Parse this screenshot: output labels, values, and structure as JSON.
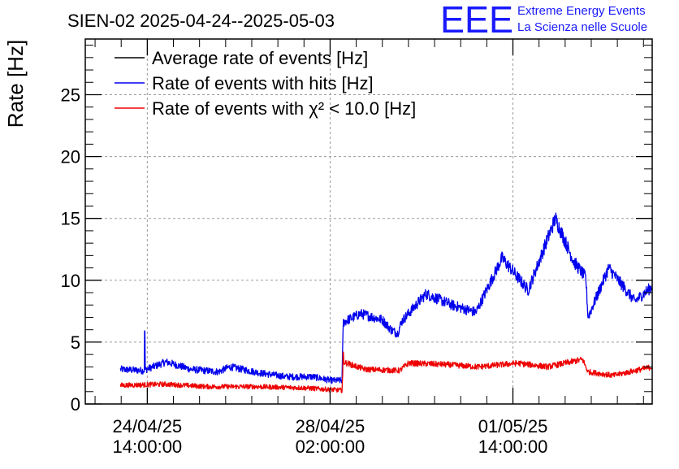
{
  "chart_data": {
    "type": "line",
    "title": "SIEN-02 2025-04-24--2025-05-03",
    "ylabel": "Rate [Hz]",
    "xlabel": "",
    "ylim": [
      0,
      29.5
    ],
    "xlim": [
      "2025-04-23T09:30:00",
      "2025-05-04T06:00:00"
    ],
    "grid": true,
    "legend_position": "top-left",
    "logo": {
      "mark": "EEE",
      "line1": "Extreme Energy Events",
      "line2": "La Scienza nelle Scuole",
      "color": "#1a1aff"
    },
    "y_ticks": [
      0,
      5,
      10,
      15,
      20,
      25
    ],
    "x_ticks": [
      {
        "x": "2025-04-24T14:00:00",
        "line1": "24/04/25",
        "line2": "14:00:00"
      },
      {
        "x": "2025-04-28T02:00:00",
        "line1": "28/04/25",
        "line2": "02:00:00"
      },
      {
        "x": "2025-05-01T14:00:00",
        "line1": "01/05/25",
        "line2": "14:00:00"
      }
    ],
    "series": [
      {
        "name": "Average rate of events [Hz]",
        "color": "#000000",
        "points": []
      },
      {
        "name": "Rate of events with hits [Hz]",
        "color": "#0000ee",
        "noise": 0.35,
        "spikes": [
          {
            "x": "2025-04-24T12:50:00",
            "y": 5.9
          }
        ],
        "points": [
          {
            "x": "2025-04-24T01:40:00",
            "y": 2.8
          },
          {
            "x": "2025-04-24T12:00:00",
            "y": 2.7
          },
          {
            "x": "2025-04-24T22:40:00",
            "y": 3.4
          },
          {
            "x": "2025-04-25T10:00:00",
            "y": 2.8
          },
          {
            "x": "2025-04-25T22:40:00",
            "y": 2.6
          },
          {
            "x": "2025-04-26T04:00:00",
            "y": 3.0
          },
          {
            "x": "2025-04-26T18:00:00",
            "y": 2.5
          },
          {
            "x": "2025-04-27T06:00:00",
            "y": 2.2
          },
          {
            "x": "2025-04-27T18:00:00",
            "y": 2.2
          },
          {
            "x": "2025-04-28T02:30:00",
            "y": 1.9
          },
          {
            "x": "2025-04-28T07:30:00",
            "y": 1.9
          },
          {
            "x": "2025-04-28T08:00:00",
            "y": 6.6
          },
          {
            "x": "2025-04-28T16:00:00",
            "y": 7.3
          },
          {
            "x": "2025-04-29T02:00:00",
            "y": 6.8
          },
          {
            "x": "2025-04-29T06:00:00",
            "y": 6.0
          },
          {
            "x": "2025-04-29T09:00:00",
            "y": 5.7
          },
          {
            "x": "2025-04-29T11:00:00",
            "y": 6.7
          },
          {
            "x": "2025-04-29T22:00:00",
            "y": 8.9
          },
          {
            "x": "2025-04-30T10:00:00",
            "y": 8.0
          },
          {
            "x": "2025-04-30T21:00:00",
            "y": 7.4
          },
          {
            "x": "2025-05-01T09:00:00",
            "y": 11.8
          },
          {
            "x": "2025-05-01T21:00:00",
            "y": 9.2
          },
          {
            "x": "2025-05-02T09:30:00",
            "y": 15.0
          },
          {
            "x": "2025-05-02T18:00:00",
            "y": 11.5
          },
          {
            "x": "2025-05-02T23:30:00",
            "y": 10.2
          },
          {
            "x": "2025-05-03T00:30:00",
            "y": 7.0
          },
          {
            "x": "2025-05-03T10:00:00",
            "y": 11.0
          },
          {
            "x": "2025-05-03T22:00:00",
            "y": 8.3
          },
          {
            "x": "2025-05-04T06:00:00",
            "y": 9.5
          }
        ]
      },
      {
        "name": "Rate of events with χ² < 10.0 [Hz]",
        "color": "#ee0000",
        "noise": 0.28,
        "spikes": [
          {
            "x": "2025-04-28T08:00:00",
            "y": 4.2
          }
        ],
        "points": [
          {
            "x": "2025-04-24T01:40:00",
            "y": 1.5
          },
          {
            "x": "2025-04-24T22:00:00",
            "y": 1.6
          },
          {
            "x": "2025-04-25T18:00:00",
            "y": 1.4
          },
          {
            "x": "2025-04-26T16:00:00",
            "y": 1.4
          },
          {
            "x": "2025-04-27T14:00:00",
            "y": 1.3
          },
          {
            "x": "2025-04-28T07:30:00",
            "y": 1.1
          },
          {
            "x": "2025-04-28T08:00:00",
            "y": 3.4
          },
          {
            "x": "2025-04-28T18:00:00",
            "y": 2.8
          },
          {
            "x": "2025-04-29T10:00:00",
            "y": 2.7
          },
          {
            "x": "2025-04-29T14:00:00",
            "y": 3.3
          },
          {
            "x": "2025-04-30T06:00:00",
            "y": 3.2
          },
          {
            "x": "2025-04-30T22:00:00",
            "y": 3.0
          },
          {
            "x": "2025-05-01T16:00:00",
            "y": 3.3
          },
          {
            "x": "2025-05-02T06:00:00",
            "y": 3.0
          },
          {
            "x": "2025-05-02T22:00:00",
            "y": 3.6
          },
          {
            "x": "2025-05-03T00:30:00",
            "y": 2.6
          },
          {
            "x": "2025-05-03T12:00:00",
            "y": 2.3
          },
          {
            "x": "2025-05-04T06:00:00",
            "y": 3.0
          }
        ]
      }
    ]
  }
}
